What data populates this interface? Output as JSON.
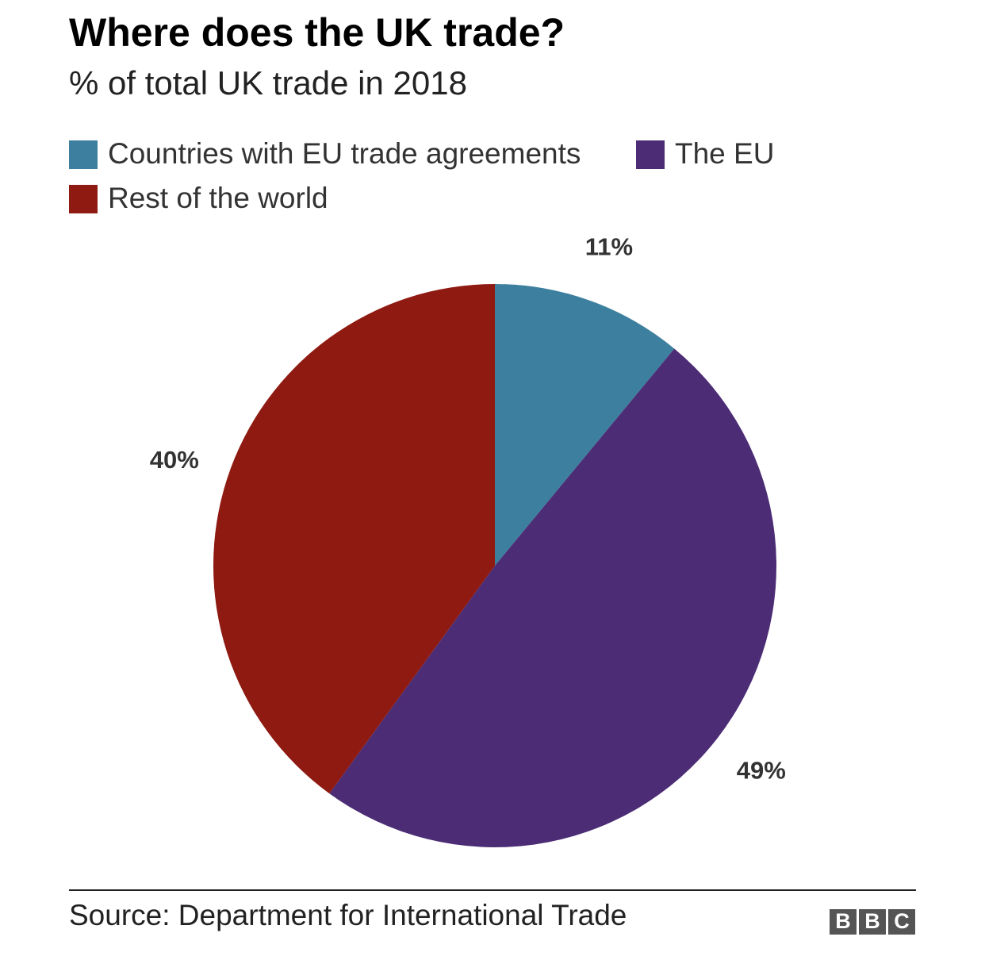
{
  "chart_data": {
    "type": "pie",
    "title": "Where does the UK trade?",
    "subtitle": "% of total UK trade in 2018",
    "categories": [
      "Countries with EU trade agreements",
      "The EU",
      "Rest of the world"
    ],
    "values": [
      11,
      49,
      40
    ],
    "value_labels": [
      "11%",
      "49%",
      "40%"
    ],
    "colors": [
      "#3d7f9e",
      "#4b2c75",
      "#8e1a12"
    ],
    "legend": "top-left",
    "source": "Source: Department for International Trade",
    "logo": [
      "B",
      "B",
      "C"
    ]
  }
}
